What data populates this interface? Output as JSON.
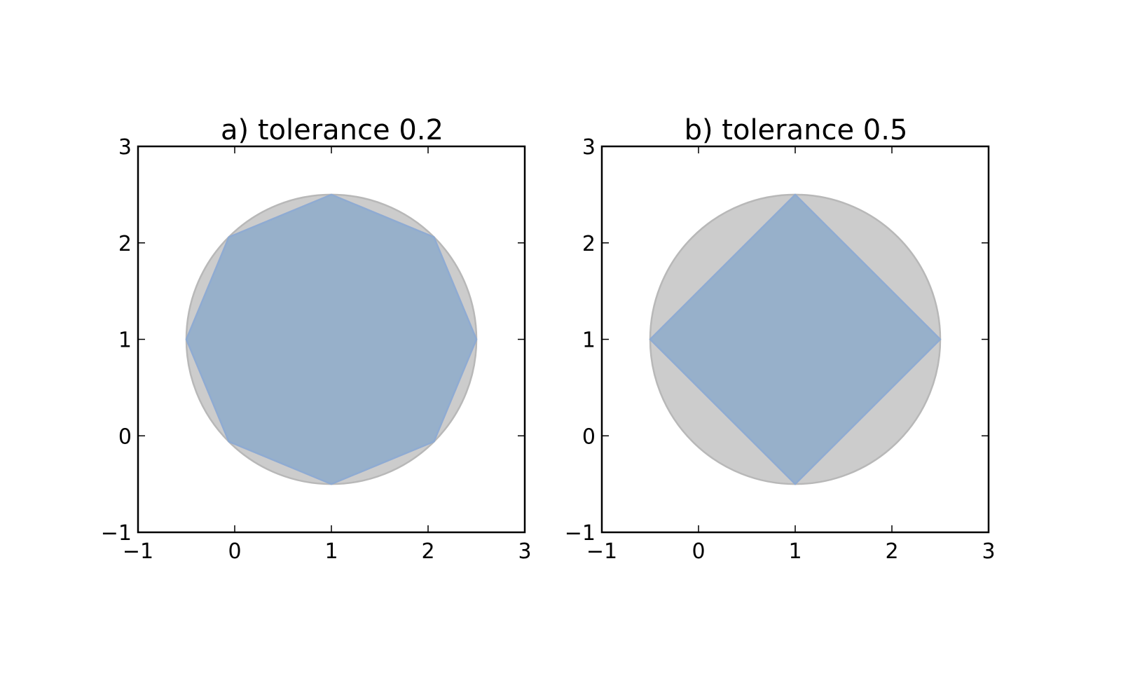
{
  "chart_data": [
    {
      "type": "area",
      "title": "a) tolerance 0.2",
      "xlim": [
        -1,
        3
      ],
      "ylim": [
        -1,
        3
      ],
      "xticks": [
        "−1",
        "0",
        "1",
        "2",
        "3"
      ],
      "yticks": [
        "−1",
        "0",
        "1",
        "2",
        "3"
      ],
      "grid": false,
      "shapes": {
        "circle": {
          "center": [
            1,
            1
          ],
          "radius": 1.5,
          "fill": "#cccccc",
          "stroke": "#b8b8b8"
        },
        "polygon": {
          "fill": "#97b0ca",
          "stroke": "#8fabd2",
          "points": [
            [
              1,
              2.5
            ],
            [
              2.06,
              2.06
            ],
            [
              2.5,
              1
            ],
            [
              2.06,
              -0.06
            ],
            [
              1,
              -0.5
            ],
            [
              -0.06,
              -0.06
            ],
            [
              -0.5,
              1
            ],
            [
              -0.06,
              2.06
            ]
          ]
        }
      }
    },
    {
      "type": "area",
      "title": "b) tolerance 0.5",
      "xlim": [
        -1,
        3
      ],
      "ylim": [
        -1,
        3
      ],
      "xticks": [
        "−1",
        "0",
        "1",
        "2",
        "3"
      ],
      "yticks": [
        "−1",
        "0",
        "1",
        "2",
        "3"
      ],
      "grid": false,
      "shapes": {
        "circle": {
          "center": [
            1,
            1
          ],
          "radius": 1.5,
          "fill": "#cccccc",
          "stroke": "#b8b8b8"
        },
        "polygon": {
          "fill": "#97b0ca",
          "stroke": "#8fabd2",
          "points": [
            [
              1,
              2.5
            ],
            [
              2.5,
              1
            ],
            [
              1,
              -0.5
            ],
            [
              -0.5,
              1
            ]
          ]
        }
      }
    }
  ]
}
